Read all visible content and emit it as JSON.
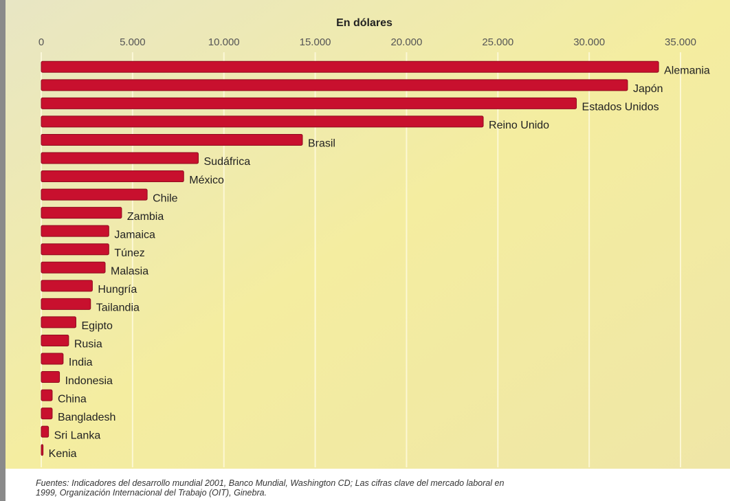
{
  "chart_data": {
    "type": "barh",
    "title": "En dólares",
    "categories": [
      "Alemania",
      "Japón",
      "Estados Unidos",
      "Reino Unido",
      "Brasil",
      "Sudáfrica",
      "México",
      "Chile",
      "Zambia",
      "Jamaica",
      "Túnez",
      "Malasia",
      "Hungría",
      "Tailandia",
      "Egipto",
      "Rusia",
      "India",
      "Indonesia",
      "China",
      "Bangladesh",
      "Sri Lanka",
      "Kenia"
    ],
    "values": [
      33800,
      32100,
      29300,
      24200,
      14300,
      8600,
      7800,
      5800,
      4400,
      3700,
      3700,
      3500,
      2800,
      2700,
      1900,
      1500,
      1200,
      1000,
      600,
      600,
      400,
      100
    ],
    "color": "#c8102e",
    "xlim": [
      0,
      35000
    ],
    "xticks": [
      0,
      {
        "value": 5000,
        "label": "5.000"
      },
      {
        "value": 10000,
        "label": "10.000"
      },
      {
        "value": 15000,
        "label": "15.000"
      },
      {
        "value": 20000,
        "label": "20.000"
      },
      {
        "value": 25000,
        "label": "25.000"
      },
      {
        "value": 30000,
        "label": "30.000"
      },
      {
        "value": 35000,
        "label": "35.000"
      }
    ],
    "grid": true,
    "source": "Fuentes: Indicadores del desarrollo mundial 2001, Banco Mundial, Washington CD; Las cifras clave del mercado laboral en 1999, Organización Internacional del Trabajo (OIT), Ginebra."
  }
}
